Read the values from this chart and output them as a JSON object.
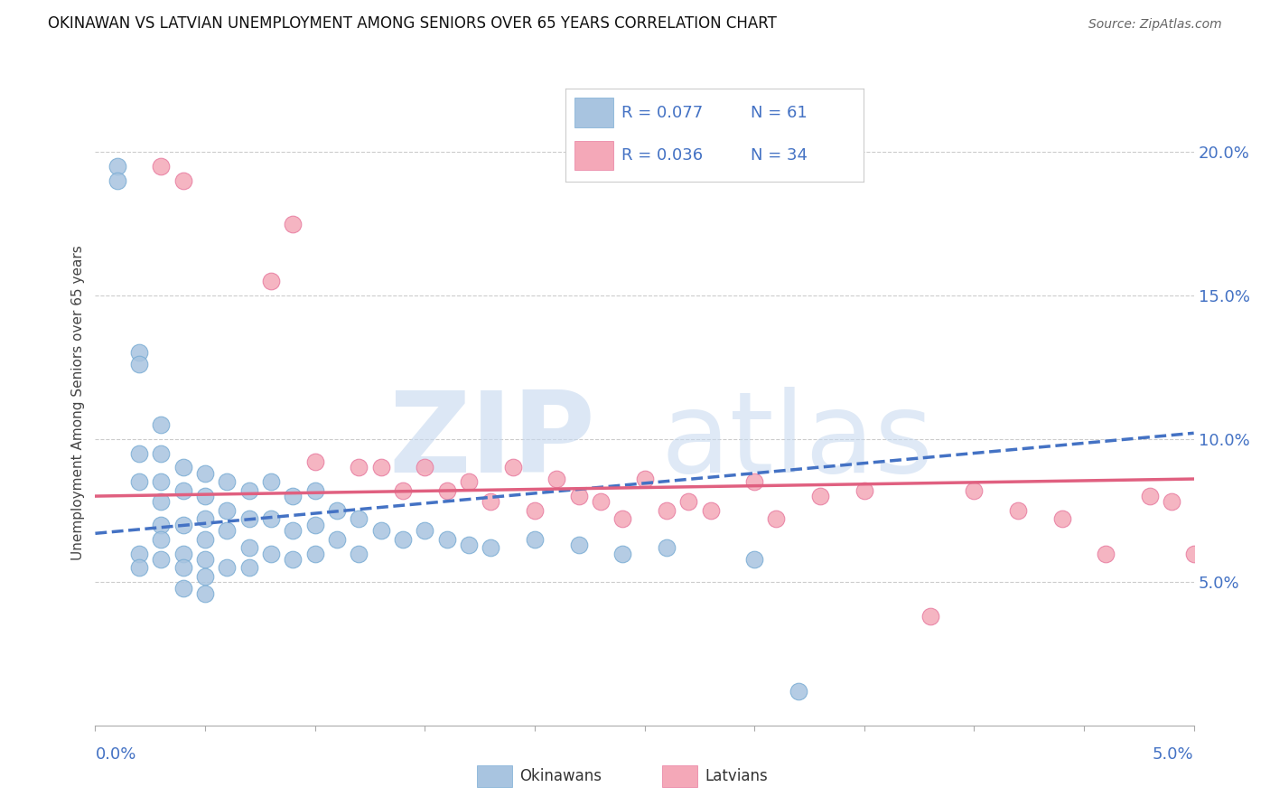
{
  "title": "OKINAWAN VS LATVIAN UNEMPLOYMENT AMONG SENIORS OVER 65 YEARS CORRELATION CHART",
  "source": "Source: ZipAtlas.com",
  "ylabel": "Unemployment Among Seniors over 65 years",
  "xlim": [
    0.0,
    0.05
  ],
  "ylim": [
    0.0,
    0.225
  ],
  "yticks_right": [
    0.05,
    0.1,
    0.15,
    0.2
  ],
  "ytick_labels_right": [
    "5.0%",
    "10.0%",
    "15.0%",
    "20.0%"
  ],
  "legend_r1": "R = 0.077",
  "legend_n1": "N = 61",
  "legend_r2": "R = 0.036",
  "legend_n2": "N = 34",
  "okinawan_color": "#a8c4e0",
  "okinawan_edge": "#7aadd4",
  "latvian_color": "#f4a8b8",
  "latvian_edge": "#e87ca0",
  "trend_okinawan_color": "#4472c4",
  "trend_latvian_color": "#e06080",
  "legend_text_color": "#4472c4",
  "background_color": "#ffffff",
  "grid_color": "#cccccc",
  "ok_x": [
    0.001,
    0.001,
    0.002,
    0.002,
    0.002,
    0.002,
    0.002,
    0.002,
    0.003,
    0.003,
    0.003,
    0.003,
    0.003,
    0.003,
    0.003,
    0.004,
    0.004,
    0.004,
    0.004,
    0.004,
    0.004,
    0.005,
    0.005,
    0.005,
    0.005,
    0.005,
    0.005,
    0.005,
    0.006,
    0.006,
    0.006,
    0.006,
    0.007,
    0.007,
    0.007,
    0.007,
    0.008,
    0.008,
    0.008,
    0.009,
    0.009,
    0.009,
    0.01,
    0.01,
    0.01,
    0.011,
    0.011,
    0.012,
    0.012,
    0.013,
    0.014,
    0.015,
    0.016,
    0.017,
    0.018,
    0.02,
    0.022,
    0.024,
    0.026,
    0.03,
    0.032
  ],
  "ok_y": [
    0.195,
    0.19,
    0.13,
    0.126,
    0.095,
    0.085,
    0.06,
    0.055,
    0.105,
    0.095,
    0.085,
    0.078,
    0.07,
    0.065,
    0.058,
    0.09,
    0.082,
    0.07,
    0.06,
    0.055,
    0.048,
    0.088,
    0.08,
    0.072,
    0.065,
    0.058,
    0.052,
    0.046,
    0.085,
    0.075,
    0.068,
    0.055,
    0.082,
    0.072,
    0.062,
    0.055,
    0.085,
    0.072,
    0.06,
    0.08,
    0.068,
    0.058,
    0.082,
    0.07,
    0.06,
    0.075,
    0.065,
    0.072,
    0.06,
    0.068,
    0.065,
    0.068,
    0.065,
    0.063,
    0.062,
    0.065,
    0.063,
    0.06,
    0.062,
    0.058,
    0.012
  ],
  "lat_x": [
    0.003,
    0.004,
    0.008,
    0.009,
    0.01,
    0.012,
    0.013,
    0.014,
    0.015,
    0.016,
    0.017,
    0.018,
    0.019,
    0.02,
    0.021,
    0.022,
    0.023,
    0.024,
    0.025,
    0.026,
    0.027,
    0.028,
    0.03,
    0.031,
    0.033,
    0.035,
    0.038,
    0.04,
    0.042,
    0.044,
    0.046,
    0.048,
    0.049,
    0.05
  ],
  "lat_y": [
    0.195,
    0.19,
    0.155,
    0.175,
    0.092,
    0.09,
    0.09,
    0.082,
    0.09,
    0.082,
    0.085,
    0.078,
    0.09,
    0.075,
    0.086,
    0.08,
    0.078,
    0.072,
    0.086,
    0.075,
    0.078,
    0.075,
    0.085,
    0.072,
    0.08,
    0.082,
    0.038,
    0.082,
    0.075,
    0.072,
    0.06,
    0.08,
    0.078,
    0.06
  ],
  "trend_ok_x0": 0.0,
  "trend_ok_y0": 0.067,
  "trend_ok_x1": 0.05,
  "trend_ok_y1": 0.102,
  "trend_lat_x0": 0.0,
  "trend_lat_y0": 0.08,
  "trend_lat_x1": 0.05,
  "trend_lat_y1": 0.086
}
